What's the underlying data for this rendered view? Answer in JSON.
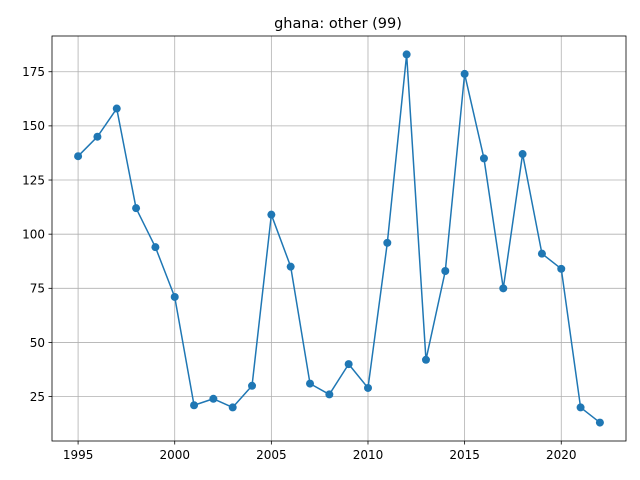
{
  "chart_data": {
    "type": "line",
    "title": "ghana: other (99)",
    "xlabel": "",
    "ylabel": "",
    "xlim": [
      1993.65,
      2023.35
    ],
    "ylim": [
      4.5,
      191.5
    ],
    "x_ticks": [
      1995,
      2000,
      2005,
      2010,
      2015,
      2020
    ],
    "y_ticks": [
      25,
      50,
      75,
      100,
      125,
      150,
      175
    ],
    "grid": true,
    "color": "#1f77b4",
    "x": [
      1995,
      1996,
      1997,
      1998,
      1999,
      2000,
      2001,
      2002,
      2003,
      2004,
      2005,
      2006,
      2007,
      2008,
      2009,
      2010,
      2011,
      2012,
      2013,
      2014,
      2015,
      2016,
      2017,
      2018,
      2019,
      2020,
      2021,
      2022
    ],
    "values": [
      136,
      145,
      158,
      112,
      94,
      71,
      21,
      24,
      20,
      30,
      109,
      85,
      31,
      26,
      40,
      29,
      96,
      183,
      42,
      83,
      174,
      135,
      75,
      137,
      91,
      84,
      20,
      13
    ]
  }
}
